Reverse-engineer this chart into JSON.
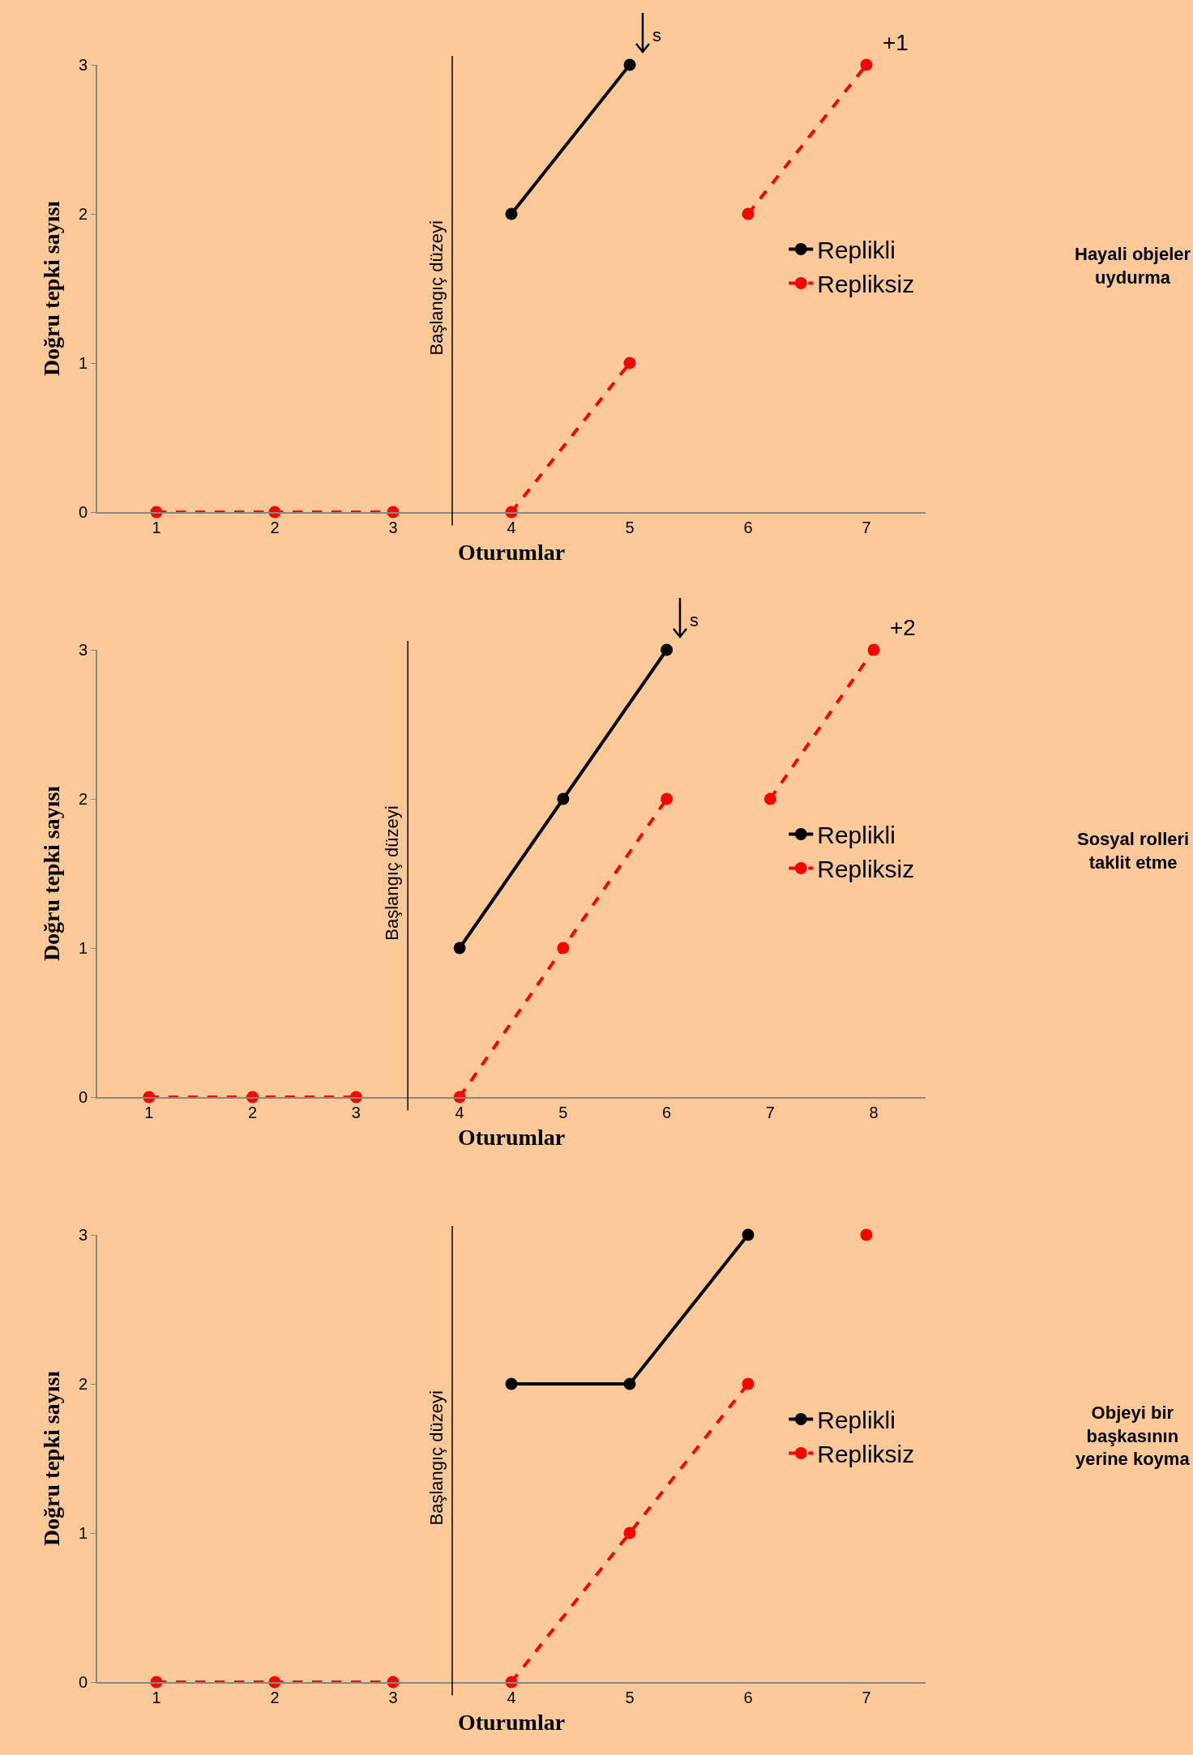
{
  "chart_data": [
    {
      "type": "line",
      "xlabel": "Oturumlar",
      "ylabel": "Doğru tepki sayısı",
      "xlim": [
        0.5,
        7.5
      ],
      "xticks": [
        1,
        2,
        3,
        4,
        5,
        6,
        7
      ],
      "ylim": [
        0,
        3
      ],
      "yticks": [
        0,
        1,
        2,
        3
      ],
      "grid": false,
      "legend": "right",
      "marker": "circle",
      "series": [
        {
          "name": "Replikli",
          "color": "#000000",
          "line_style": "solid",
          "x": [
            4,
            5
          ],
          "values": [
            2,
            3
          ]
        },
        {
          "name": "Repliksiz",
          "color": "#ff0000",
          "line_style": "dashed",
          "x": [
            1,
            2,
            3,
            3.5,
            4,
            5,
            5.5,
            6,
            7
          ],
          "values": [
            0,
            0,
            0,
            null,
            0,
            1,
            null,
            2,
            3
          ]
        }
      ],
      "ref_lines": [
        {
          "axis": "x",
          "value": 3.5,
          "label": "Başlangıç düzeyi",
          "color": "#000000"
        }
      ],
      "annotations": [
        {
          "text": "s",
          "x": 5,
          "y": 3
        },
        {
          "text": "+1",
          "x": 7,
          "y": 3
        },
        "Hayali objeler\nuydurma"
      ]
    },
    {
      "type": "line",
      "xlabel": "Oturumlar",
      "ylabel": "Doğru tepki sayısı",
      "xlim": [
        0.5,
        8.5
      ],
      "xticks": [
        1,
        2,
        3,
        4,
        5,
        6,
        7,
        8
      ],
      "ylim": [
        0,
        3
      ],
      "yticks": [
        0,
        1,
        2,
        3
      ],
      "grid": false,
      "legend": "right",
      "marker": "circle",
      "series": [
        {
          "name": "Replikli",
          "color": "#000000",
          "line_style": "solid",
          "x": [
            4,
            5,
            6
          ],
          "values": [
            1,
            2,
            3
          ]
        },
        {
          "name": "Repliksiz",
          "color": "#ff0000",
          "line_style": "dashed",
          "x": [
            1,
            2,
            3,
            3.5,
            4,
            5,
            6,
            6.5,
            7,
            8
          ],
          "values": [
            0,
            0,
            0,
            null,
            0,
            1,
            2,
            null,
            2,
            3
          ]
        }
      ],
      "ref_lines": [
        {
          "axis": "x",
          "value": 3.5,
          "label": "Başlangıç düzeyi",
          "color": "#000000"
        }
      ],
      "annotations": [
        {
          "text": "s",
          "x": 6,
          "y": 3
        },
        {
          "text": "+2",
          "x": 8,
          "y": 3
        },
        "Sosyal rolleri\ntaklit etme"
      ]
    },
    {
      "type": "line",
      "xlabel": "Oturumlar",
      "ylabel": "Doğru tepki sayısı",
      "xlim": [
        0.5,
        7.5
      ],
      "xticks": [
        1,
        2,
        3,
        4,
        5,
        6,
        7
      ],
      "ylim": [
        0,
        3
      ],
      "yticks": [
        0,
        1,
        2,
        3
      ],
      "grid": false,
      "legend": "right",
      "marker": "circle",
      "series": [
        {
          "name": "Replikli",
          "color": "#000000",
          "line_style": "solid",
          "x": [
            4,
            5,
            6
          ],
          "values": [
            2,
            2,
            3
          ]
        },
        {
          "name": "Repliksiz",
          "color": "#ff0000",
          "line_style": "dashed",
          "x": [
            1,
            2,
            3,
            3.5,
            4,
            5,
            6,
            6.5,
            7
          ],
          "values": [
            0,
            0,
            0,
            null,
            0,
            1,
            2,
            null,
            3
          ]
        }
      ],
      "ref_lines": [
        {
          "axis": "x",
          "value": 3.5,
          "label": "Başlangıç düzeyi",
          "color": "#000000"
        }
      ],
      "annotations": [
        "Objeyi bir\nbaşkasının\nyerine koyma"
      ]
    }
  ]
}
